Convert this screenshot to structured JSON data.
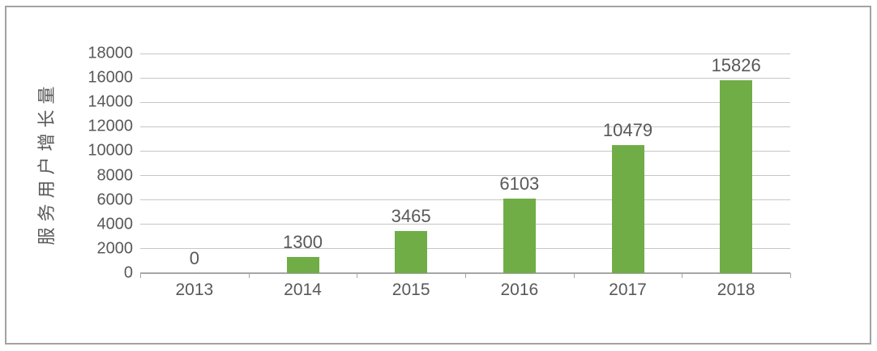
{
  "chart_data": {
    "type": "bar",
    "title": "",
    "categories": [
      "2013",
      "2014",
      "2015",
      "2016",
      "2017",
      "2018"
    ],
    "values": [
      0,
      1300,
      3465,
      6103,
      10479,
      15826
    ],
    "series_name": "",
    "xlabel": "",
    "ylabel": "服务用户增长量",
    "ylim": [
      0,
      18000
    ],
    "ytick_step": 2000,
    "yticks": [
      0,
      2000,
      4000,
      6000,
      8000,
      10000,
      12000,
      14000,
      16000,
      18000
    ],
    "grid": true,
    "legend": false,
    "legend_position": "none",
    "bar_color": "#70ad47",
    "text_color": "#595959",
    "gridline_color": "#c6c6c6",
    "axis_color": "#a6a6a6",
    "frame_border_color": "#a3a3a3",
    "background_color": "#ffffff"
  }
}
